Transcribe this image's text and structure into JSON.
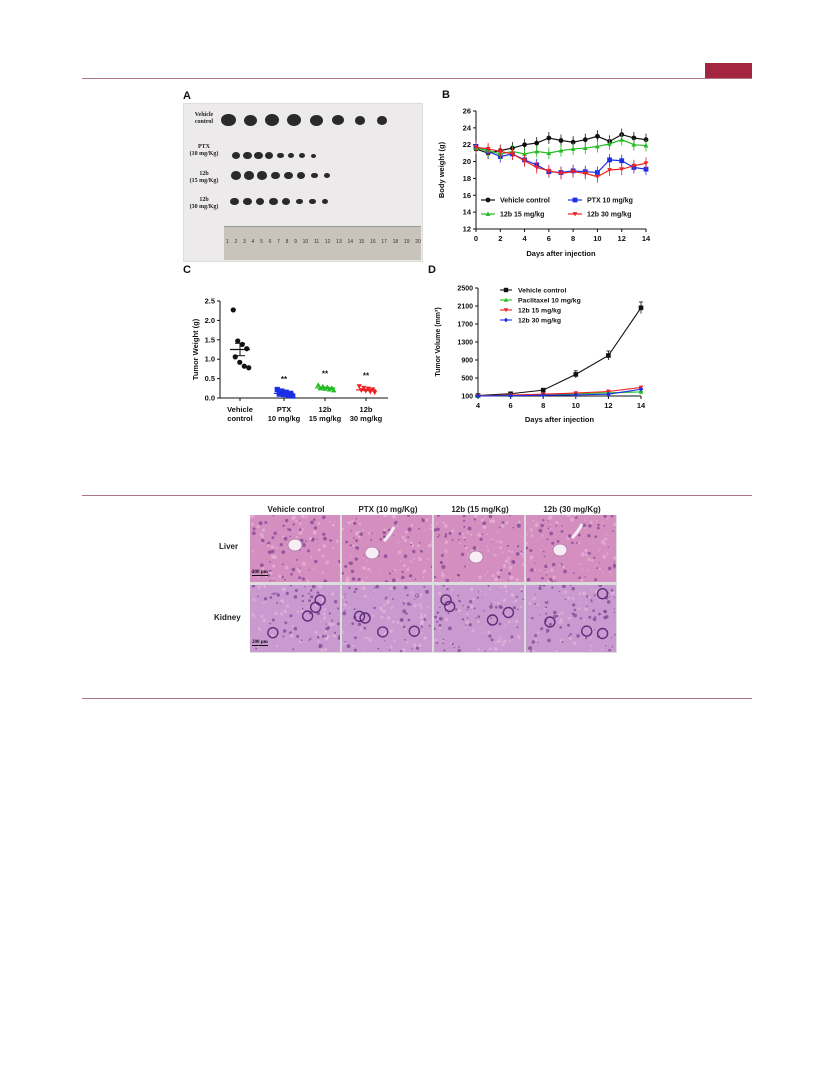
{
  "panels": {
    "A": {
      "letter": "A",
      "rows": [
        {
          "label": "Vehicle control",
          "count": 8
        },
        {
          "label": "PTX (10 mg/Kg)",
          "count": 8
        },
        {
          "label": "12b (15 mg/Kg)",
          "count": 8
        },
        {
          "label": "12b (30 mg/Kg)",
          "count": 8
        }
      ],
      "ruler_numbers": [
        "1",
        "2",
        "3",
        "4",
        "5",
        "6",
        "7",
        "8",
        "9",
        "10",
        "11",
        "12",
        "13",
        "14",
        "15",
        "16",
        "17",
        "18",
        "19",
        "20"
      ]
    }
  },
  "chart_data": [
    {
      "panel": "B",
      "type": "line",
      "ylabel": "Body weight (g)",
      "xlabel": "Days after injection",
      "ylim": [
        12,
        26
      ],
      "xlim": [
        0,
        14
      ],
      "yticks": [
        12,
        14,
        16,
        18,
        20,
        22,
        24,
        26
      ],
      "xticks": [
        0,
        2,
        4,
        6,
        8,
        10,
        12,
        14
      ],
      "legend_placement": "inside-bottom",
      "x": [
        0,
        1,
        2,
        3,
        4,
        5,
        6,
        7,
        8,
        9,
        10,
        11,
        12,
        13,
        14
      ],
      "series": [
        {
          "name": "Vehicle control",
          "color": "#111111",
          "marker": "circle",
          "values": [
            21.5,
            21.0,
            21.3,
            21.6,
            22.0,
            22.2,
            22.8,
            22.5,
            22.3,
            22.6,
            23.0,
            22.4,
            23.2,
            22.8,
            22.6
          ]
        },
        {
          "name": "PTX 10 mg/kg",
          "color": "#1a2fe6",
          "marker": "square",
          "values": [
            21.8,
            21.2,
            20.6,
            20.9,
            20.2,
            19.6,
            18.8,
            18.7,
            18.9,
            18.8,
            18.7,
            20.2,
            20.1,
            19.3,
            19.1
          ]
        },
        {
          "name": "12b 15 mg/kg",
          "color": "#22bb22",
          "marker": "triangle",
          "values": [
            21.6,
            21.3,
            20.9,
            21.2,
            20.9,
            21.2,
            21.0,
            21.3,
            21.5,
            21.6,
            21.8,
            22.1,
            22.6,
            22.0,
            21.9
          ]
        },
        {
          "name": "12b 30 mg/kg",
          "color": "#ee2222",
          "marker": "triangle-down",
          "values": [
            21.7,
            21.5,
            21.2,
            20.9,
            20.1,
            19.3,
            18.9,
            18.6,
            18.8,
            18.6,
            18.2,
            19.0,
            19.1,
            19.5,
            19.8
          ]
        }
      ]
    },
    {
      "panel": "C",
      "type": "scatter",
      "ylabel": "Tumor Weight (g)",
      "ylim": [
        0,
        2.5
      ],
      "yticks": [
        0.0,
        0.5,
        1.0,
        1.5,
        2.0,
        2.5
      ],
      "ytick_labels": [
        "0.0",
        "0.5",
        "1.0",
        "1.5",
        "2.0",
        "2.5"
      ],
      "categories": [
        "Vehicle control",
        "PTX 10 mg/kg",
        "12b 15 mg/kg",
        "12b 30 mg/kg"
      ],
      "category_lines": [
        [
          "Vehicle",
          "control"
        ],
        [
          "PTX",
          "10 mg/kg"
        ],
        [
          "12b",
          "15 mg/kg"
        ],
        [
          "12b",
          "30 mg/kg"
        ]
      ],
      "significance": [
        "",
        "**",
        "**",
        "**"
      ],
      "series": [
        {
          "name": "Vehicle control",
          "color": "#111111",
          "marker": "circle",
          "values": [
            2.27,
            1.47,
            1.38,
            1.27,
            1.06,
            0.92,
            0.82,
            0.78
          ],
          "mean": 1.25,
          "sem": 0.16
        },
        {
          "name": "PTX 10 mg/kg",
          "color": "#1a2fe6",
          "marker": "square",
          "values": [
            0.22,
            0.18,
            0.15,
            0.12,
            0.1,
            0.09,
            0.07,
            0.05
          ],
          "mean": 0.12,
          "sem": 0.02
        },
        {
          "name": "12b 15 mg/kg",
          "color": "#22bb22",
          "marker": "triangle",
          "values": [
            0.34,
            0.3,
            0.28,
            0.26,
            0.25,
            0.24,
            0.22,
            0.2
          ],
          "mean": 0.26,
          "sem": 0.02
        },
        {
          "name": "12b 30 mg/kg",
          "color": "#ee2222",
          "marker": "triangle-down",
          "values": [
            0.3,
            0.26,
            0.24,
            0.22,
            0.2,
            0.18,
            0.16,
            0.14
          ],
          "mean": 0.21,
          "sem": 0.02
        }
      ]
    },
    {
      "panel": "D",
      "type": "line",
      "ylabel": "Tumor Volume (mm³)",
      "xlabel": "Days after injection",
      "ylim": [
        100,
        2500
      ],
      "xlim": [
        4,
        14
      ],
      "yticks": [
        100,
        500,
        900,
        1300,
        1700,
        2100,
        2500
      ],
      "xticks": [
        4,
        6,
        8,
        10,
        12,
        14
      ],
      "legend_placement": "top-left",
      "x": [
        4,
        6,
        8,
        10,
        12,
        14
      ],
      "series": [
        {
          "name": "Vehicle control",
          "color": "#111111",
          "marker": "square",
          "values": [
            110,
            150,
            230,
            580,
            1000,
            2060
          ],
          "err": [
            10,
            20,
            30,
            80,
            100,
            130
          ]
        },
        {
          "name": "Paclitaxel 10 mg/kg",
          "color": "#22bb22",
          "marker": "triangle",
          "values": [
            105,
            115,
            130,
            150,
            170,
            190
          ],
          "err": [
            5,
            8,
            10,
            10,
            12,
            15
          ]
        },
        {
          "name": "12b 15 mg/kg",
          "color": "#ee2222",
          "marker": "triangle-down",
          "values": [
            105,
            120,
            140,
            165,
            200,
            290
          ],
          "err": [
            5,
            8,
            10,
            12,
            15,
            20
          ]
        },
        {
          "name": "12b 30 mg/kg",
          "color": "#1a2fe6",
          "marker": "diamond",
          "values": [
            102,
            108,
            115,
            125,
            140,
            250
          ],
          "err": [
            4,
            5,
            6,
            8,
            10,
            15
          ]
        }
      ]
    }
  ],
  "histology": {
    "columns": [
      "Vehicle control",
      "PTX (10 mg/Kg)",
      "12b (15 mg/Kg)",
      "12b (30 mg/Kg)"
    ],
    "rows": [
      "Liver",
      "Kidney"
    ],
    "scale_bar": "200 μm"
  }
}
